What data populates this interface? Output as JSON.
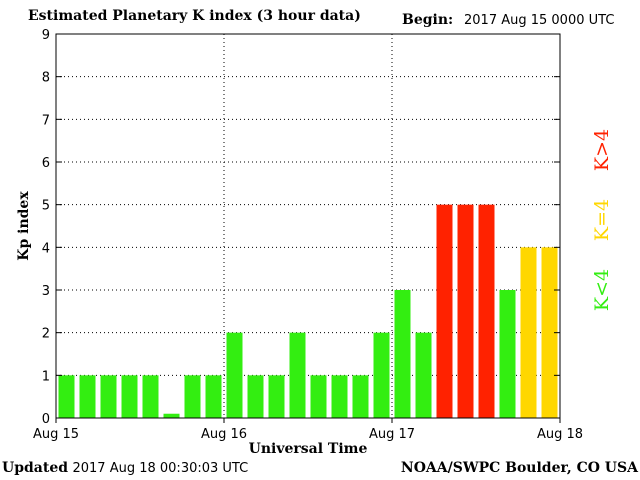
{
  "header": {
    "title": "Estimated Planetary K index (3 hour data)",
    "begin_label": "Begin:",
    "begin_value": "2017 Aug 15 0000 UTC"
  },
  "footer": {
    "updated_label": "Updated",
    "updated_value": "2017 Aug 18 00:30:03 UTC",
    "source": "NOAA/SWPC Boulder, CO USA"
  },
  "colors": {
    "low": "#33ee11",
    "equal": "#ffd700",
    "high": "#ff2200"
  },
  "chart_data": {
    "type": "bar",
    "title": "Estimated Planetary K index (3 hour data)",
    "xlabel": "Universal Time",
    "ylabel": "Kp index",
    "ylim": [
      0,
      9
    ],
    "yticks": [
      "0",
      "1",
      "2",
      "3",
      "4",
      "5",
      "6",
      "7",
      "8",
      "9"
    ],
    "xticks": [
      "Aug 15",
      "Aug 16",
      "Aug 17",
      "Aug 18"
    ],
    "interval_hours": 3,
    "grid": true,
    "values": [
      1,
      1,
      1,
      1,
      1,
      0.1,
      1,
      1,
      2,
      1,
      1,
      2,
      1,
      1,
      1,
      2,
      3,
      2,
      5,
      5,
      5,
      3,
      4,
      4
    ],
    "legend": [
      {
        "label": "K<4",
        "color": "#33ee11"
      },
      {
        "label": "K=4",
        "color": "#ffd700"
      },
      {
        "label": "K>4",
        "color": "#ff2200"
      }
    ]
  }
}
